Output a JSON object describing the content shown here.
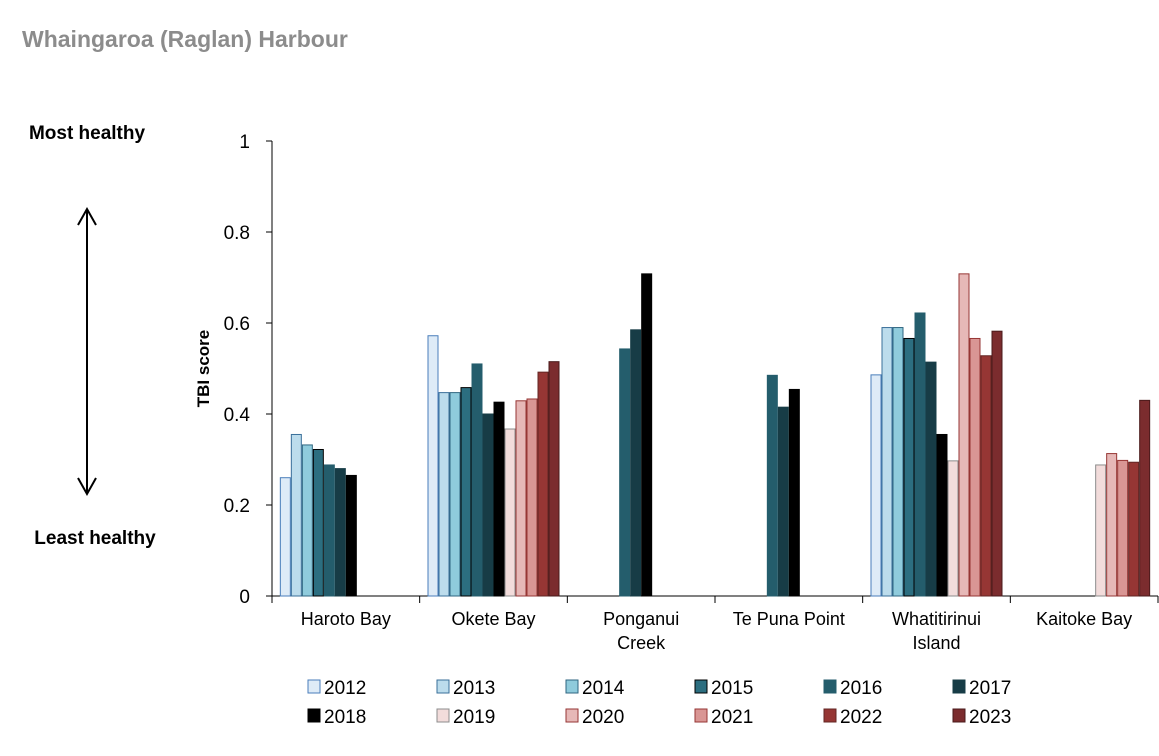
{
  "page": {
    "title": "Whaingaroa (Raglan) Harbour",
    "most_healthy": "Most healthy",
    "least_healthy": "Least healthy"
  },
  "chart_data": {
    "type": "bar",
    "title": "",
    "xlabel": "",
    "ylabel": "TBI score",
    "ylim": [
      0,
      1
    ],
    "yticks": [
      0,
      0.2,
      0.4,
      0.6,
      0.8,
      1
    ],
    "ytick_labels": [
      "0",
      "0.2",
      "0.4",
      "0.6",
      "0.8",
      "1"
    ],
    "grid": false,
    "legend_position": "bottom",
    "categories": [
      [
        "Haroto Bay"
      ],
      [
        "Okete Bay"
      ],
      [
        "Ponganui",
        "Creek"
      ],
      [
        "Te Puna Point"
      ],
      [
        "Whatitirinui",
        "Island"
      ],
      [
        "Kaitoke Bay"
      ]
    ],
    "series": [
      {
        "name": "2012",
        "fill": "#deebf7",
        "stroke": "#4a7ebb",
        "values": [
          0.26,
          0.572,
          null,
          null,
          0.486,
          null
        ]
      },
      {
        "name": "2013",
        "fill": "#bcdcec",
        "stroke": "#3a6f9a",
        "values": [
          0.355,
          0.447,
          null,
          null,
          0.59,
          null
        ]
      },
      {
        "name": "2014",
        "fill": "#8fcbdc",
        "stroke": "#2f6680",
        "values": [
          0.332,
          0.447,
          null,
          null,
          0.59,
          null
        ]
      },
      {
        "name": "2015",
        "fill": "#2c6e80",
        "stroke": "#000000",
        "values": [
          0.322,
          0.458,
          null,
          null,
          0.566,
          null
        ]
      },
      {
        "name": "2016",
        "fill": "#245d6c",
        "stroke": "#245d6c",
        "values": [
          0.288,
          0.51,
          0.543,
          0.485,
          0.622,
          null
        ]
      },
      {
        "name": "2017",
        "fill": "#173c46",
        "stroke": "#173c46",
        "values": [
          0.28,
          0.4,
          0.585,
          0.415,
          0.514,
          null
        ]
      },
      {
        "name": "2018",
        "fill": "#000000",
        "stroke": "#000000",
        "values": [
          0.265,
          0.426,
          0.708,
          0.454,
          0.355,
          null
        ]
      },
      {
        "name": "2019",
        "fill": "#f2dcdb",
        "stroke": "#8c8c8c",
        "values": [
          null,
          0.367,
          null,
          null,
          0.297,
          0.288
        ]
      },
      {
        "name": "2020",
        "fill": "#e6b8b7",
        "stroke": "#963634",
        "values": [
          null,
          0.429,
          null,
          null,
          0.708,
          0.313
        ]
      },
      {
        "name": "2021",
        "fill": "#d99694",
        "stroke": "#963634",
        "values": [
          null,
          0.433,
          null,
          null,
          0.566,
          0.298
        ]
      },
      {
        "name": "2022",
        "fill": "#963634",
        "stroke": "#632523",
        "values": [
          null,
          0.492,
          null,
          null,
          0.528,
          0.294
        ]
      },
      {
        "name": "2023",
        "fill": "#7b2c2e",
        "stroke": "#4a1a1b",
        "values": [
          null,
          0.515,
          null,
          null,
          0.582,
          0.43
        ]
      }
    ]
  }
}
